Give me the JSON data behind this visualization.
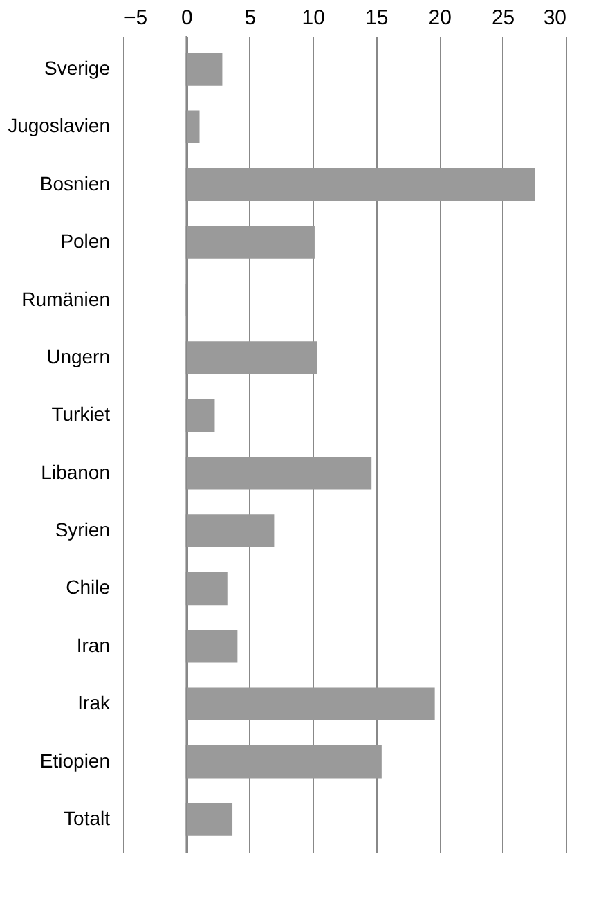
{
  "chart_data": {
    "type": "bar",
    "orientation": "horizontal",
    "categories": [
      "Sverige",
      "Jugoslavien",
      "Bosnien",
      "Polen",
      "Rumänien",
      "Ungern",
      "Turkiet",
      "Libanon",
      "Syrien",
      "Chile",
      "Iran",
      "Irak",
      "Etiopien",
      "Totalt"
    ],
    "values": [
      2.8,
      1.0,
      27.5,
      10.1,
      0,
      10.3,
      2.2,
      14.6,
      6.9,
      3.2,
      4.0,
      19.6,
      15.4,
      3.6
    ],
    "color": "#9a9a9a",
    "xlim": [
      -5,
      30
    ],
    "xticks": [
      -5,
      0,
      5,
      10,
      15,
      20,
      25,
      30
    ],
    "grid": "x"
  }
}
